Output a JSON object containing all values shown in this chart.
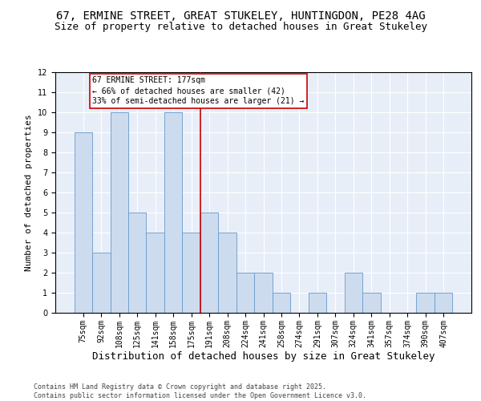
{
  "title": "67, ERMINE STREET, GREAT STUKELEY, HUNTINGDON, PE28 4AG",
  "subtitle": "Size of property relative to detached houses in Great Stukeley",
  "xlabel": "Distribution of detached houses by size in Great Stukeley",
  "ylabel": "Number of detached properties",
  "categories": [
    "75sqm",
    "92sqm",
    "108sqm",
    "125sqm",
    "141sqm",
    "158sqm",
    "175sqm",
    "191sqm",
    "208sqm",
    "224sqm",
    "241sqm",
    "258sqm",
    "274sqm",
    "291sqm",
    "307sqm",
    "324sqm",
    "341sqm",
    "357sqm",
    "374sqm",
    "390sqm",
    "407sqm"
  ],
  "values": [
    9,
    3,
    10,
    5,
    4,
    10,
    4,
    5,
    4,
    2,
    2,
    1,
    0,
    1,
    0,
    2,
    1,
    0,
    0,
    1,
    1
  ],
  "bar_color": "#ccdcee",
  "bar_edge_color": "#6699cc",
  "reference_line_index": 6,
  "reference_line_color": "#cc0000",
  "annotation_text": "67 ERMINE STREET: 177sqm\n← 66% of detached houses are smaller (42)\n33% of semi-detached houses are larger (21) →",
  "annotation_box_color": "#cc0000",
  "ylim": [
    0,
    12
  ],
  "yticks": [
    0,
    1,
    2,
    3,
    4,
    5,
    6,
    7,
    8,
    9,
    10,
    11,
    12
  ],
  "plot_bg_color": "#e8eef8",
  "grid_color": "#ffffff",
  "footer": "Contains HM Land Registry data © Crown copyright and database right 2025.\nContains public sector information licensed under the Open Government Licence v3.0.",
  "title_fontsize": 10,
  "subtitle_fontsize": 9,
  "xlabel_fontsize": 9,
  "ylabel_fontsize": 8,
  "tick_fontsize": 7,
  "annotation_fontsize": 7,
  "footer_fontsize": 6
}
